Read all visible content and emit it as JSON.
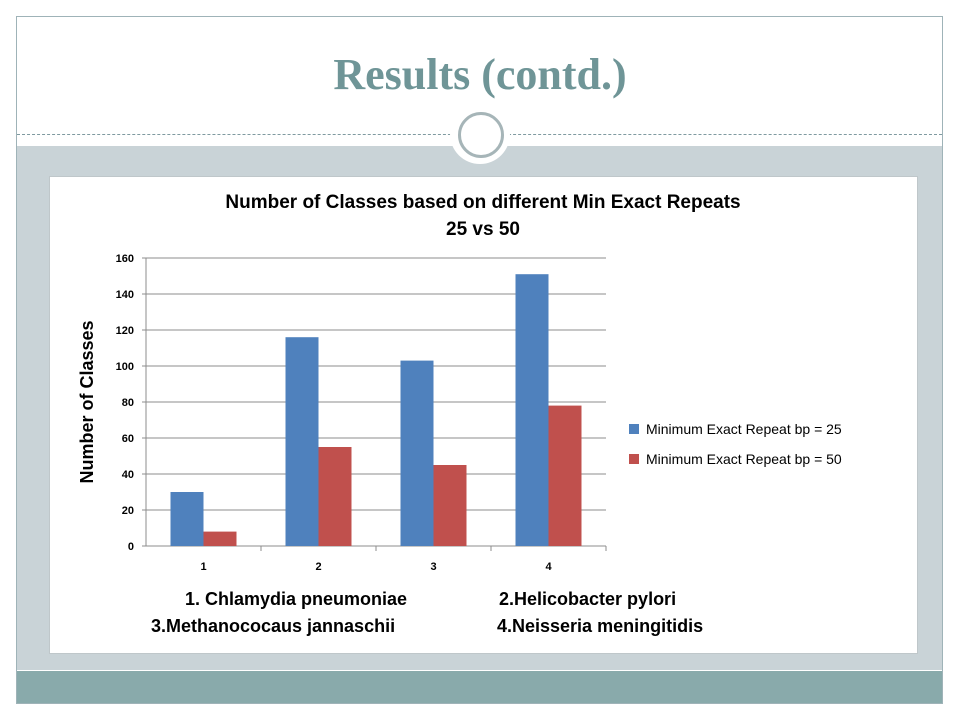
{
  "slide": {
    "title": "Results (contd.)"
  },
  "colors": {
    "series_25": "#4f81bd",
    "series_50": "#c0504d",
    "title_color": "#6f9597",
    "band": "#c9d3d7",
    "footer": "#89aaab"
  },
  "chart_data": {
    "type": "bar",
    "title_line1": "Number of Classes based on different Min Exact Repeats",
    "title_line2": "25 vs 50",
    "ylabel": "Number of Classes",
    "xlabel": "",
    "categories": [
      "1",
      "2",
      "3",
      "4"
    ],
    "ylim": [
      0,
      160
    ],
    "yticks": [
      0,
      20,
      40,
      60,
      80,
      100,
      120,
      140,
      160
    ],
    "grid": true,
    "legend_position": "right",
    "series": [
      {
        "name": "Minimum Exact Repeat bp = 25",
        "values": [
          30,
          116,
          103,
          151
        ]
      },
      {
        "name": "Minimum Exact Repeat bp = 50",
        "values": [
          8,
          55,
          45,
          78
        ]
      }
    ],
    "category_key": [
      "1. Chlamydia pneumoniae",
      "2.Helicobacter pylori",
      "3.Methanococaus jannaschii",
      "4.Neisseria meningitidis"
    ]
  }
}
